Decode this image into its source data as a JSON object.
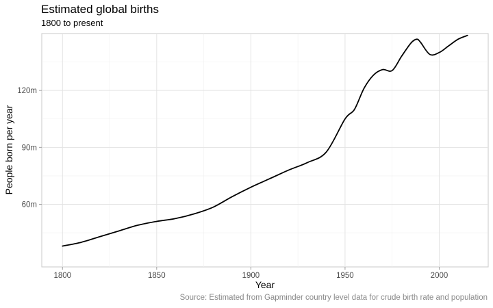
{
  "chart_data": {
    "type": "line",
    "title": "Estimated global births",
    "subtitle": "1800 to present",
    "caption": "Source: Estimated from Gapminder country level data for crude birth rate and population",
    "xlabel": "Year",
    "ylabel": "People born per year",
    "xlim": [
      1789,
      2026
    ],
    "ylim": [
      27,
      150
    ],
    "x_ticks": [
      1800,
      1850,
      1900,
      1950,
      2000
    ],
    "x_tick_labels": [
      "1800",
      "1850",
      "1900",
      "1950",
      "2000"
    ],
    "y_ticks": [
      60,
      90,
      120
    ],
    "y_tick_labels": [
      "60m",
      "90m",
      "120m"
    ],
    "grid": true,
    "series": [
      {
        "color": "#000000",
        "x": [
          1800,
          1810,
          1820,
          1830,
          1840,
          1850,
          1860,
          1870,
          1880,
          1890,
          1900,
          1910,
          1920,
          1930,
          1940,
          1950,
          1955,
          1960,
          1965,
          1970,
          1975,
          1980,
          1985,
          1988,
          1990,
          1995,
          2000,
          2005,
          2010,
          2015
        ],
        "y": [
          38,
          40,
          43,
          46,
          49,
          51,
          52.5,
          55,
          58.5,
          64,
          69,
          73.5,
          78,
          82,
          87.5,
          105,
          110,
          121,
          128,
          131,
          130.5,
          138,
          145,
          147,
          145.5,
          139,
          140,
          143.5,
          147,
          149
        ]
      }
    ]
  }
}
